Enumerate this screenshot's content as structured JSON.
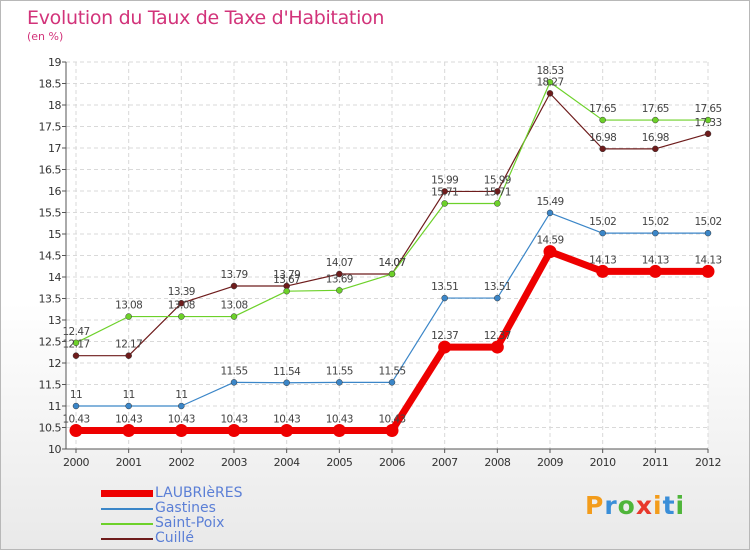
{
  "title": "Evolution du Taux de Taxe d'Habitation",
  "unit": "(en %)",
  "logo": {
    "letters": [
      "P",
      "r",
      "o",
      "x",
      "i",
      "t",
      "i"
    ],
    "colors": [
      "#f39c1b",
      "#3a8ed8",
      "#4fb53a",
      "#e8382c",
      "#f39c1b",
      "#3a8ed8",
      "#4fb53a"
    ]
  },
  "chart_data": {
    "type": "line",
    "title": "Evolution du Taux de Taxe d'Habitation",
    "ylabel": "(en %)",
    "xlabel": "",
    "x": [
      "2000",
      "2001",
      "2002",
      "2003",
      "2004",
      "2005",
      "2006",
      "2007",
      "2008",
      "2009",
      "2010",
      "2011",
      "2012"
    ],
    "ylim": [
      10,
      19
    ],
    "yticks": [
      "10",
      "10.5",
      "11",
      "11.5",
      "12",
      "12.5",
      "13",
      "13.5",
      "14",
      "14.5",
      "15",
      "15.5",
      "16",
      "16.5",
      "17",
      "17.5",
      "18",
      "18.5",
      "19"
    ],
    "grid": true,
    "legend_position": "bottom-left",
    "series": [
      {
        "name": "LAUBRIèRES",
        "color": "#ee0000",
        "values": [
          10.43,
          10.43,
          10.43,
          10.43,
          10.43,
          10.43,
          10.43,
          12.37,
          12.37,
          14.59,
          14.13,
          14.13,
          14.13
        ]
      },
      {
        "name": "Gastines",
        "color": "#3b86c8",
        "values": [
          11,
          11,
          11,
          11.55,
          11.54,
          11.55,
          11.55,
          13.51,
          13.51,
          15.49,
          15.02,
          15.02,
          15.02
        ]
      },
      {
        "name": "Saint-Poix",
        "color": "#6dd12a",
        "values": [
          12.47,
          13.08,
          13.08,
          13.08,
          13.67,
          13.69,
          14.07,
          15.71,
          15.71,
          18.53,
          17.65,
          17.65,
          17.65
        ]
      },
      {
        "name": "Cuillé",
        "color": "#6e1c1c",
        "values": [
          12.17,
          12.17,
          13.39,
          13.79,
          13.79,
          14.07,
          14.07,
          15.99,
          15.99,
          18.27,
          16.98,
          16.98,
          17.33
        ]
      }
    ]
  }
}
